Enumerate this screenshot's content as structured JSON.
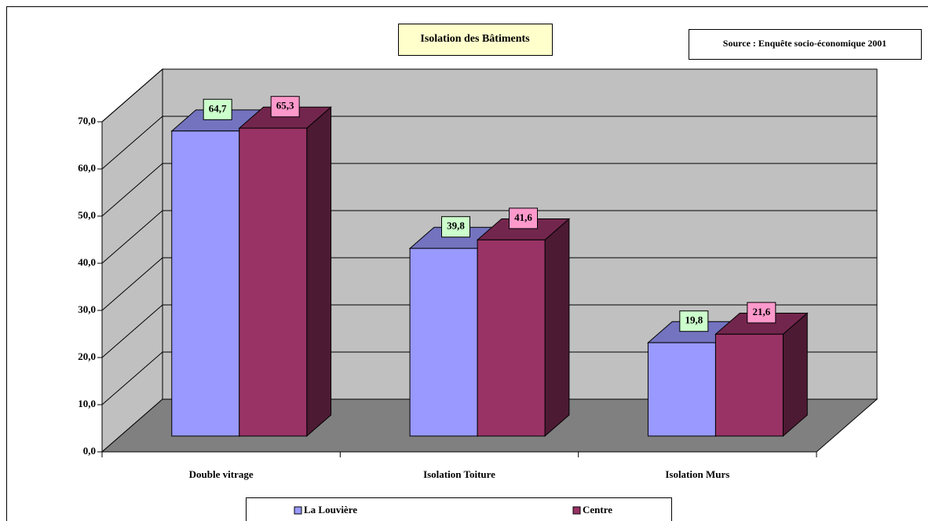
{
  "chart_data": {
    "type": "bar3d",
    "title": "Isolation des Bâtiments",
    "annotation": "Source : Enquête socio-économique 2001",
    "categories": [
      "Double vitrage",
      "Isolation Toiture",
      "Isolation Murs"
    ],
    "series": [
      {
        "name": "La Louvière",
        "color": "#9999ff",
        "label_color": "#ccffcc",
        "values": [
          64.7,
          39.8,
          19.8
        ],
        "value_labels": [
          "64,7",
          "39,8",
          "19,8"
        ]
      },
      {
        "name": "Centre",
        "color": "#993366",
        "label_color": "#ff99cc",
        "values": [
          65.3,
          41.6,
          21.6
        ],
        "value_labels": [
          "65,3",
          "41,6",
          "21,6"
        ]
      }
    ],
    "ylim": [
      0,
      70
    ],
    "yticks": [
      {
        "value": 0,
        "label": "0,0"
      },
      {
        "value": 10,
        "label": "10,0"
      },
      {
        "value": 20,
        "label": "20,0"
      },
      {
        "value": 30,
        "label": "30,0"
      },
      {
        "value": 40,
        "label": "40,0"
      },
      {
        "value": 50,
        "label": "50,0"
      },
      {
        "value": 60,
        "label": "60,0"
      },
      {
        "value": 70,
        "label": "70,0"
      }
    ],
    "grid": true,
    "legend": "bottom"
  }
}
